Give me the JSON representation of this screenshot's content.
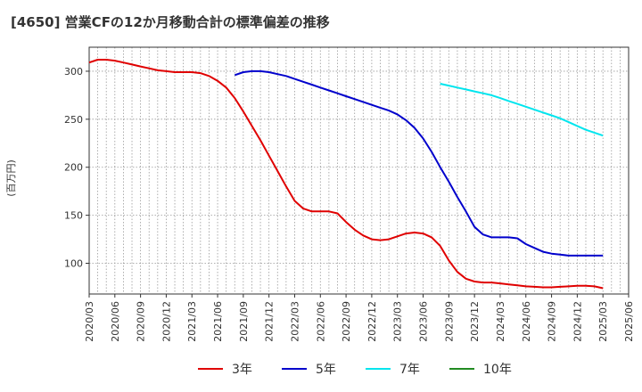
{
  "chart_data": {
    "type": "line",
    "title": "[4650]  営業CFの12か月移動合計の標準偏差の推移",
    "ylabel": "(百万円)",
    "xlabel": "",
    "ylim": [
      68,
      325
    ],
    "yticks": [
      100,
      150,
      200,
      250,
      300
    ],
    "xlim": [
      "2020-03",
      "2025-06"
    ],
    "xticks": [
      "2020/03",
      "2020/06",
      "2020/09",
      "2020/12",
      "2021/03",
      "2021/06",
      "2021/09",
      "2021/12",
      "2022/03",
      "2022/06",
      "2022/09",
      "2022/12",
      "2023/03",
      "2023/06",
      "2023/09",
      "2023/12",
      "2024/03",
      "2024/06",
      "2024/09",
      "2024/12",
      "2025/03",
      "2025/06"
    ],
    "grid": true,
    "legend_position": "bottom",
    "series": [
      {
        "name": "3年",
        "color": "#e00000",
        "x": [
          "2020-03",
          "2020-04",
          "2020-05",
          "2020-06",
          "2020-07",
          "2020-08",
          "2020-09",
          "2020-10",
          "2020-11",
          "2020-12",
          "2021-01",
          "2021-02",
          "2021-03",
          "2021-04",
          "2021-05",
          "2021-06",
          "2021-07",
          "2021-08",
          "2021-09",
          "2021-10",
          "2021-11",
          "2021-12",
          "2022-01",
          "2022-02",
          "2022-03",
          "2022-04",
          "2022-05",
          "2022-06",
          "2022-07",
          "2022-08",
          "2022-09",
          "2022-10",
          "2022-11",
          "2022-12",
          "2023-01",
          "2023-02",
          "2023-03",
          "2023-04",
          "2023-05",
          "2023-06",
          "2023-07",
          "2023-08",
          "2023-09",
          "2023-10",
          "2023-11",
          "2023-12",
          "2024-01",
          "2024-02",
          "2024-03",
          "2024-04",
          "2024-05",
          "2024-06",
          "2024-07",
          "2024-08",
          "2024-09",
          "2024-10",
          "2024-11",
          "2024-12",
          "2025-01",
          "2025-02",
          "2025-03"
        ],
        "values": [
          309,
          312,
          312,
          311,
          309,
          307,
          305,
          303,
          301,
          300,
          299,
          299,
          299,
          298,
          295,
          290,
          283,
          272,
          258,
          243,
          228,
          212,
          196,
          180,
          165,
          157,
          154,
          154,
          154,
          152,
          143,
          135,
          129,
          125,
          124,
          125,
          128,
          131,
          132,
          131,
          127,
          118,
          103,
          91,
          84,
          81,
          80,
          80,
          79,
          78,
          77,
          76,
          75.5,
          75,
          75,
          75.5,
          76,
          76.5,
          76.5,
          76,
          74
        ]
      },
      {
        "name": "5年",
        "color": "#0000cc",
        "x": [
          "2021-08",
          "2021-09",
          "2021-10",
          "2021-11",
          "2021-12",
          "2022-01",
          "2022-02",
          "2022-03",
          "2022-04",
          "2022-05",
          "2022-06",
          "2022-07",
          "2022-08",
          "2022-09",
          "2022-10",
          "2022-11",
          "2022-12",
          "2023-01",
          "2023-02",
          "2023-03",
          "2023-04",
          "2023-05",
          "2023-06",
          "2023-07",
          "2023-08",
          "2023-09",
          "2023-10",
          "2023-11",
          "2023-12",
          "2024-01",
          "2024-02",
          "2024-03",
          "2024-04",
          "2024-05",
          "2024-06",
          "2024-07",
          "2024-08",
          "2024-09",
          "2024-10",
          "2024-11",
          "2024-12",
          "2025-01",
          "2025-02",
          "2025-03"
        ],
        "values": [
          296,
          299,
          300,
          300,
          299,
          297,
          295,
          292,
          289,
          286,
          283,
          280,
          277,
          274,
          271,
          268,
          265,
          262,
          259,
          255,
          249,
          241,
          230,
          216,
          200,
          185,
          169,
          154,
          138,
          130,
          127,
          127,
          127,
          126,
          120,
          116,
          112,
          110,
          109,
          108,
          108,
          108,
          108,
          108
        ]
      },
      {
        "name": "7年",
        "color": "#00e5ee",
        "x": [
          "2023-08",
          "2023-09",
          "2023-10",
          "2023-11",
          "2023-12",
          "2024-01",
          "2024-02",
          "2024-03",
          "2024-04",
          "2024-05",
          "2024-06",
          "2024-07",
          "2024-08",
          "2024-09",
          "2024-10",
          "2024-11",
          "2024-12",
          "2025-01",
          "2025-02",
          "2025-03"
        ],
        "values": [
          287,
          285,
          283,
          281,
          279,
          277,
          275,
          272,
          269,
          266,
          263,
          260,
          257,
          254,
          251,
          247,
          243,
          239,
          236,
          233
        ]
      },
      {
        "name": "10年",
        "color": "#228b22",
        "x": [],
        "values": []
      }
    ]
  }
}
